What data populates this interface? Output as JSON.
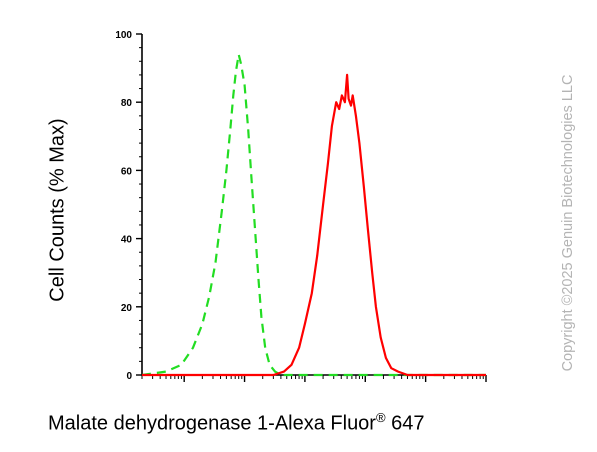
{
  "chart_data": {
    "type": "line",
    "title": "",
    "xlabel_main": "Malate dehydrogenase 1-Alexa Fluor",
    "xlabel_sup": "®",
    "xlabel_tail": " 647",
    "ylabel": "Cell Counts (% Max)",
    "ylim": [
      0,
      100
    ],
    "yticks": [
      "0",
      "20",
      "40",
      "60",
      "80",
      "100"
    ],
    "xscale": "log",
    "xlim": [
      0.2,
      100000
    ],
    "grid": false,
    "legend": "none",
    "series": [
      {
        "style": "dashed",
        "color": "#22dd22",
        "points": [
          [
            0.2,
            0
          ],
          [
            0.5,
            1
          ],
          [
            0.9,
            3
          ],
          [
            1.4,
            8
          ],
          [
            2,
            15
          ],
          [
            2.6,
            23
          ],
          [
            3.3,
            33
          ],
          [
            4.2,
            48
          ],
          [
            5,
            60
          ],
          [
            5.8,
            72
          ],
          [
            6.5,
            82
          ],
          [
            7.2,
            89
          ],
          [
            8,
            94
          ],
          [
            8.8,
            91
          ],
          [
            10,
            85
          ],
          [
            11.5,
            72
          ],
          [
            13,
            58
          ],
          [
            15,
            42
          ],
          [
            17,
            28
          ],
          [
            19,
            17
          ],
          [
            22,
            8
          ],
          [
            26,
            3
          ],
          [
            32,
            1
          ],
          [
            40,
            0
          ],
          [
            100000,
            0
          ]
        ]
      },
      {
        "style": "solid",
        "color": "#ff0000",
        "points": [
          [
            0.2,
            0
          ],
          [
            30,
            0
          ],
          [
            45,
            1
          ],
          [
            60,
            3
          ],
          [
            80,
            8
          ],
          [
            100,
            15
          ],
          [
            130,
            24
          ],
          [
            160,
            35
          ],
          [
            200,
            50
          ],
          [
            240,
            62
          ],
          [
            280,
            73
          ],
          [
            330,
            80
          ],
          [
            370,
            78
          ],
          [
            410,
            82
          ],
          [
            460,
            80
          ],
          [
            500,
            88
          ],
          [
            530,
            81
          ],
          [
            580,
            79
          ],
          [
            620,
            82
          ],
          [
            700,
            76
          ],
          [
            800,
            68
          ],
          [
            950,
            55
          ],
          [
            1100,
            43
          ],
          [
            1300,
            30
          ],
          [
            1500,
            20
          ],
          [
            1800,
            11
          ],
          [
            2200,
            5
          ],
          [
            2700,
            2
          ],
          [
            3500,
            1
          ],
          [
            5000,
            0
          ],
          [
            100000,
            0
          ]
        ]
      }
    ]
  },
  "watermark": "Copyright ©2025 Genuin Biotechnologies LLC"
}
